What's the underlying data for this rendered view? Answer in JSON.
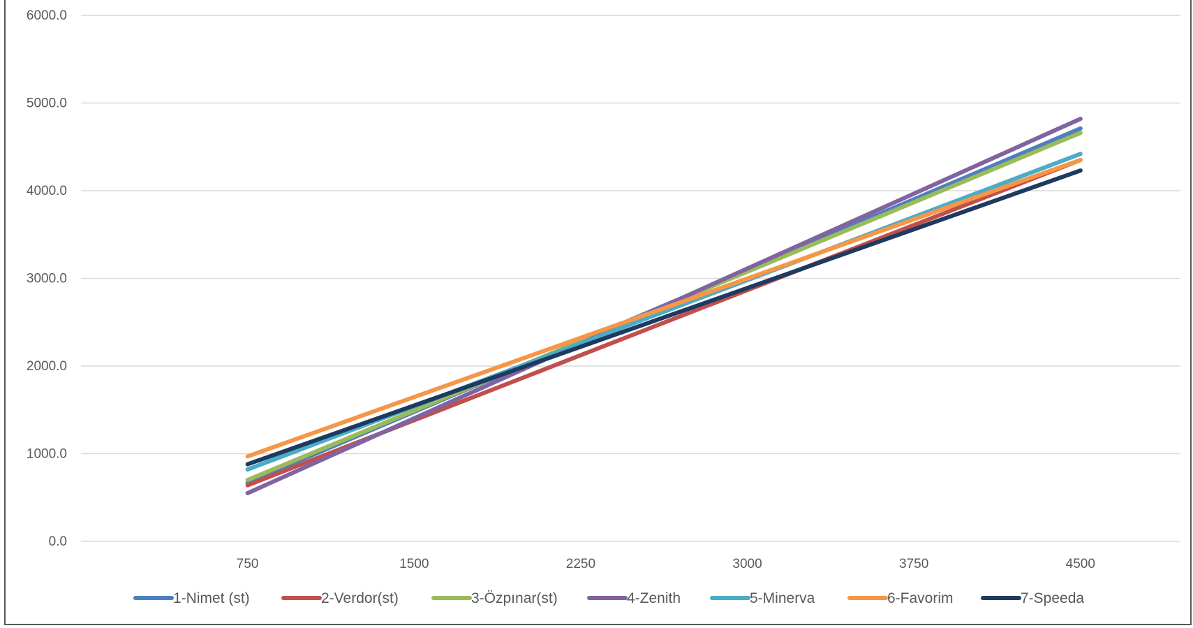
{
  "chart_data": {
    "type": "line",
    "title": "",
    "xlabel": "",
    "ylabel": "",
    "x": [
      750,
      4500
    ],
    "x_ticks": [
      "750",
      "1500",
      "2250",
      "3000",
      "3750",
      "4500"
    ],
    "x_tick_values": [
      750,
      1500,
      2250,
      3000,
      3750,
      4500
    ],
    "y_ticks": [
      "0.0",
      "1000.0",
      "2000.0",
      "3000.0",
      "4000.0",
      "5000.0",
      "6000.0"
    ],
    "y_tick_values": [
      0,
      1000,
      2000,
      3000,
      4000,
      5000,
      6000
    ],
    "xlim": [
      0,
      4950
    ],
    "ylim": [
      0,
      6000
    ],
    "grid": "horizontal",
    "legend_position": "bottom",
    "series": [
      {
        "name": "1-Nimet (st)",
        "color": "#4e7fbf",
        "values": [
          670,
          4710
        ]
      },
      {
        "name": "2-Verdor(st)",
        "color": "#c0504d",
        "values": [
          640,
          4350
        ]
      },
      {
        "name": "3-Özpınar(st)",
        "color": "#9bbb59",
        "values": [
          700,
          4660
        ]
      },
      {
        "name": "4-Zenith",
        "color": "#8064a2",
        "values": [
          550,
          4820
        ]
      },
      {
        "name": "5-Minerva",
        "color": "#4bacc6",
        "values": [
          820,
          4420
        ]
      },
      {
        "name": "6-Favorim",
        "color": "#f79646",
        "values": [
          970,
          4350
        ]
      },
      {
        "name": "7-Speeda",
        "color": "#1f3a60",
        "values": [
          880,
          4230
        ]
      }
    ]
  }
}
